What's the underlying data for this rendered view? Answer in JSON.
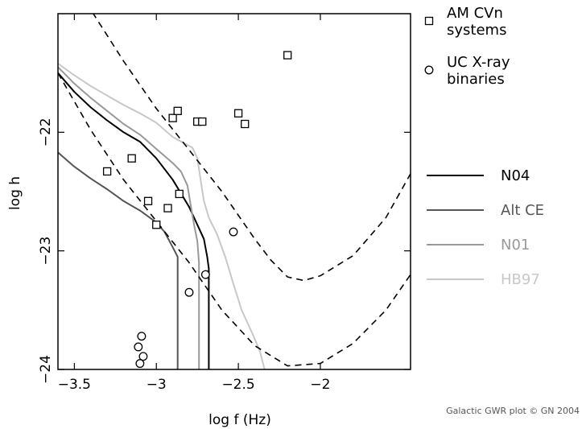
{
  "chart_data": {
    "type": "scatter",
    "title": "",
    "xlabel": "log f (Hz)",
    "ylabel": "log h",
    "xlim": [
      -3.6,
      -1.45
    ],
    "ylim": [
      -24.0,
      -21.0
    ],
    "x_ticks": [
      {
        "value": -3.5,
        "label": "−3.5"
      },
      {
        "value": -3.0,
        "label": "−3"
      },
      {
        "value": -2.5,
        "label": "−2.5"
      },
      {
        "value": -2.0,
        "label": "−2"
      }
    ],
    "y_ticks": [
      {
        "value": -22,
        "label": "−22"
      },
      {
        "value": -23,
        "label": "−23"
      },
      {
        "value": -24,
        "label": "−24"
      }
    ],
    "grid": false,
    "credit": "Galactic GWR plot © GN 2004",
    "series": [
      {
        "name": "AM CVn systems",
        "kind": "points",
        "marker": "square",
        "color": "#000000",
        "points": [
          [
            -2.2,
            -21.35
          ],
          [
            -2.9,
            -21.88
          ],
          [
            -2.87,
            -21.82
          ],
          [
            -2.75,
            -21.91
          ],
          [
            -2.72,
            -21.91
          ],
          [
            -2.5,
            -21.84
          ],
          [
            -2.46,
            -21.93
          ],
          [
            -3.15,
            -22.22
          ],
          [
            -3.3,
            -22.33
          ],
          [
            -2.86,
            -22.52
          ],
          [
            -3.05,
            -22.58
          ],
          [
            -2.93,
            -22.64
          ],
          [
            -3.0,
            -22.78
          ]
        ]
      },
      {
        "name": "UC X-ray binaries",
        "kind": "points",
        "marker": "circle",
        "color": "#000000",
        "points": [
          [
            -2.53,
            -22.84
          ],
          [
            -2.7,
            -23.2
          ],
          [
            -2.8,
            -23.35
          ],
          [
            -3.09,
            -23.72
          ],
          [
            -3.11,
            -23.81
          ],
          [
            -3.08,
            -23.89
          ],
          [
            -3.1,
            -23.95
          ]
        ]
      },
      {
        "name": "N04",
        "kind": "line",
        "color": "#000000",
        "points": [
          [
            -3.6,
            -21.5
          ],
          [
            -3.5,
            -21.66
          ],
          [
            -3.4,
            -21.79
          ],
          [
            -3.3,
            -21.9
          ],
          [
            -3.2,
            -22.0
          ],
          [
            -3.1,
            -22.08
          ],
          [
            -3.0,
            -22.22
          ],
          [
            -2.9,
            -22.4
          ],
          [
            -2.8,
            -22.63
          ],
          [
            -2.75,
            -22.78
          ],
          [
            -2.71,
            -22.9
          ],
          [
            -2.69,
            -23.05
          ],
          [
            -2.68,
            -23.15
          ],
          [
            -2.68,
            -24.0
          ]
        ]
      },
      {
        "name": "Alt CE",
        "kind": "line",
        "color": "#555555",
        "points": [
          [
            -3.6,
            -22.17
          ],
          [
            -3.5,
            -22.29
          ],
          [
            -3.4,
            -22.39
          ],
          [
            -3.3,
            -22.48
          ],
          [
            -3.2,
            -22.58
          ],
          [
            -3.1,
            -22.66
          ],
          [
            -3.0,
            -22.76
          ],
          [
            -2.95,
            -22.84
          ],
          [
            -2.9,
            -22.97
          ],
          [
            -2.87,
            -23.05
          ],
          [
            -2.87,
            -24.0
          ]
        ]
      },
      {
        "name": "N01",
        "kind": "line",
        "color": "#999999",
        "points": [
          [
            -3.6,
            -21.45
          ],
          [
            -3.5,
            -21.59
          ],
          [
            -3.4,
            -21.71
          ],
          [
            -3.3,
            -21.82
          ],
          [
            -3.2,
            -21.93
          ],
          [
            -3.1,
            -22.02
          ],
          [
            -3.0,
            -22.14
          ],
          [
            -2.9,
            -22.26
          ],
          [
            -2.85,
            -22.33
          ],
          [
            -2.81,
            -22.45
          ],
          [
            -2.79,
            -22.62
          ],
          [
            -2.77,
            -22.78
          ],
          [
            -2.75,
            -22.92
          ],
          [
            -2.74,
            -23.1
          ],
          [
            -2.74,
            -24.0
          ]
        ]
      },
      {
        "name": "HB97",
        "kind": "line",
        "color": "#c8c8c8",
        "points": [
          [
            -3.6,
            -21.42
          ],
          [
            -3.5,
            -21.52
          ],
          [
            -3.4,
            -21.61
          ],
          [
            -3.3,
            -21.69
          ],
          [
            -3.2,
            -21.77
          ],
          [
            -3.1,
            -21.84
          ],
          [
            -3.0,
            -21.92
          ],
          [
            -2.9,
            -22.04
          ],
          [
            -2.82,
            -22.1
          ],
          [
            -2.78,
            -22.13
          ],
          [
            -2.75,
            -22.22
          ],
          [
            -2.73,
            -22.4
          ],
          [
            -2.71,
            -22.58
          ],
          [
            -2.68,
            -22.72
          ],
          [
            -2.63,
            -22.86
          ],
          [
            -2.58,
            -23.05
          ],
          [
            -2.53,
            -23.28
          ],
          [
            -2.48,
            -23.5
          ],
          [
            -2.42,
            -23.68
          ],
          [
            -2.37,
            -23.84
          ],
          [
            -2.34,
            -24.0
          ]
        ]
      },
      {
        "name": "",
        "kind": "line",
        "dashed": true,
        "color": "#000000",
        "points": [
          [
            -3.5,
            -20.75
          ],
          [
            -3.2,
            -21.4
          ],
          [
            -3.0,
            -21.8
          ],
          [
            -2.8,
            -22.15
          ],
          [
            -2.6,
            -22.5
          ],
          [
            -2.5,
            -22.7
          ],
          [
            -2.4,
            -22.9
          ],
          [
            -2.3,
            -23.08
          ],
          [
            -2.2,
            -23.22
          ],
          [
            -2.1,
            -23.25
          ],
          [
            -2.0,
            -23.21
          ],
          [
            -1.8,
            -23.04
          ],
          [
            -1.6,
            -22.72
          ],
          [
            -1.45,
            -22.35
          ]
        ]
      },
      {
        "name": "",
        "kind": "line",
        "dashed": true,
        "color": "#000000",
        "points": [
          [
            -3.6,
            -21.5
          ],
          [
            -3.4,
            -21.98
          ],
          [
            -3.2,
            -22.4
          ],
          [
            -3.0,
            -22.75
          ],
          [
            -2.8,
            -23.1
          ],
          [
            -2.6,
            -23.5
          ],
          [
            -2.4,
            -23.8
          ],
          [
            -2.2,
            -23.97
          ],
          [
            -2.0,
            -23.95
          ],
          [
            -1.8,
            -23.78
          ],
          [
            -1.6,
            -23.5
          ],
          [
            -1.45,
            -23.2
          ]
        ]
      }
    ],
    "legend": {
      "placement": "right",
      "entries": [
        "AM CVn systems",
        "UC X-ray binaries",
        "N04",
        "Alt CE",
        "N01",
        "HB97"
      ]
    }
  }
}
